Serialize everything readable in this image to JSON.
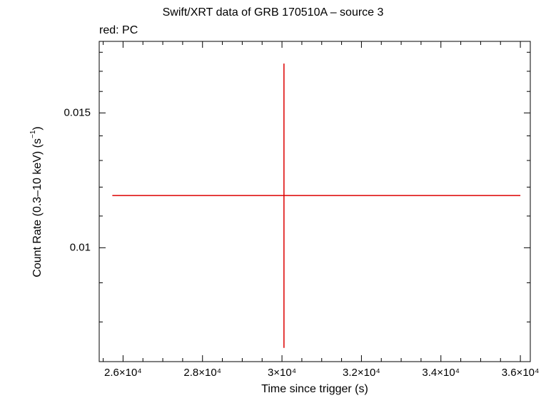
{
  "chart_data": {
    "type": "scatter",
    "title": "Swift/XRT data of GRB 170510A – source 3",
    "subtitle": "red: PC",
    "xlabel": "Time since trigger (s)",
    "ylabel": "Count Rate (0.3–10 keV) (s⁻¹)",
    "xscale": "linear",
    "yscale": "log",
    "xlim": [
      25400,
      36250
    ],
    "ylim": [
      0.0071,
      0.0186
    ],
    "x_ticks": [
      {
        "value": 26000,
        "label": "2.6×10⁴"
      },
      {
        "value": 28000,
        "label": "2.8×10⁴"
      },
      {
        "value": 30000,
        "label": "3×10⁴"
      },
      {
        "value": 32000,
        "label": "3.2×10⁴"
      },
      {
        "value": 34000,
        "label": "3.4×10⁴"
      },
      {
        "value": 36000,
        "label": "3.6×10⁴"
      }
    ],
    "y_ticks": [
      {
        "value": 0.01,
        "label": "0.01"
      },
      {
        "value": 0.015,
        "label": "0.015"
      }
    ],
    "grid": false,
    "series": [
      {
        "color": "#dd0000",
        "points": [
          {
            "x": 30050,
            "xerr_low": 4320,
            "xerr_high": 5950,
            "y": 0.0117,
            "yerr_low": 0.0043,
            "yerr_high": 0.0057
          }
        ]
      }
    ]
  }
}
